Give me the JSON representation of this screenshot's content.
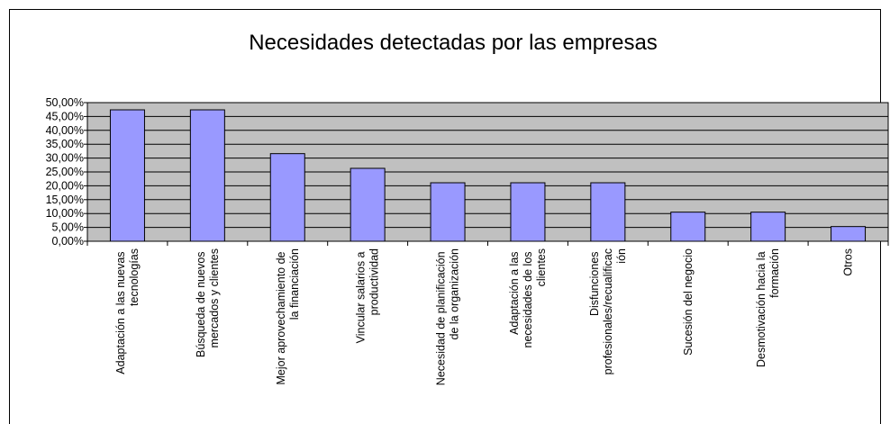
{
  "chart_data": {
    "type": "bar",
    "title": "Necesidades detectadas por las empresas",
    "categories": [
      "Adaptación a las nuevas tecnologías",
      "Búsqueda de nuevos mercados y clientes",
      "Mejor aprovechamiento de la financiación",
      "Vincular salarios a productividad",
      "Necesidad de planificación de la organización",
      "Adaptación a las necesidades de los clientes",
      "Disfunciones profesionales/recualificación",
      "Sucesión del negocio",
      "Desmotivación hacia la formación",
      "Otros"
    ],
    "values": [
      47.4,
      47.4,
      31.6,
      26.3,
      21.1,
      21.1,
      21.1,
      10.5,
      10.5,
      5.3
    ],
    "color": "#9999ff",
    "plot_background": "#c0c0c0",
    "ylim": [
      0,
      50
    ],
    "yticks": [
      {
        "value": 0,
        "label": "0,00%"
      },
      {
        "value": 5,
        "label": "5,00%"
      },
      {
        "value": 10,
        "label": "10,00%"
      },
      {
        "value": 15,
        "label": "15,00%"
      },
      {
        "value": 20,
        "label": "20,00%"
      },
      {
        "value": 25,
        "label": "25,00%"
      },
      {
        "value": 30,
        "label": "30,00%"
      },
      {
        "value": 35,
        "label": "35,00%"
      },
      {
        "value": 40,
        "label": "40,00%"
      },
      {
        "value": 45,
        "label": "45,00%"
      },
      {
        "value": 50,
        "label": "50,00%"
      }
    ],
    "grid": true
  }
}
